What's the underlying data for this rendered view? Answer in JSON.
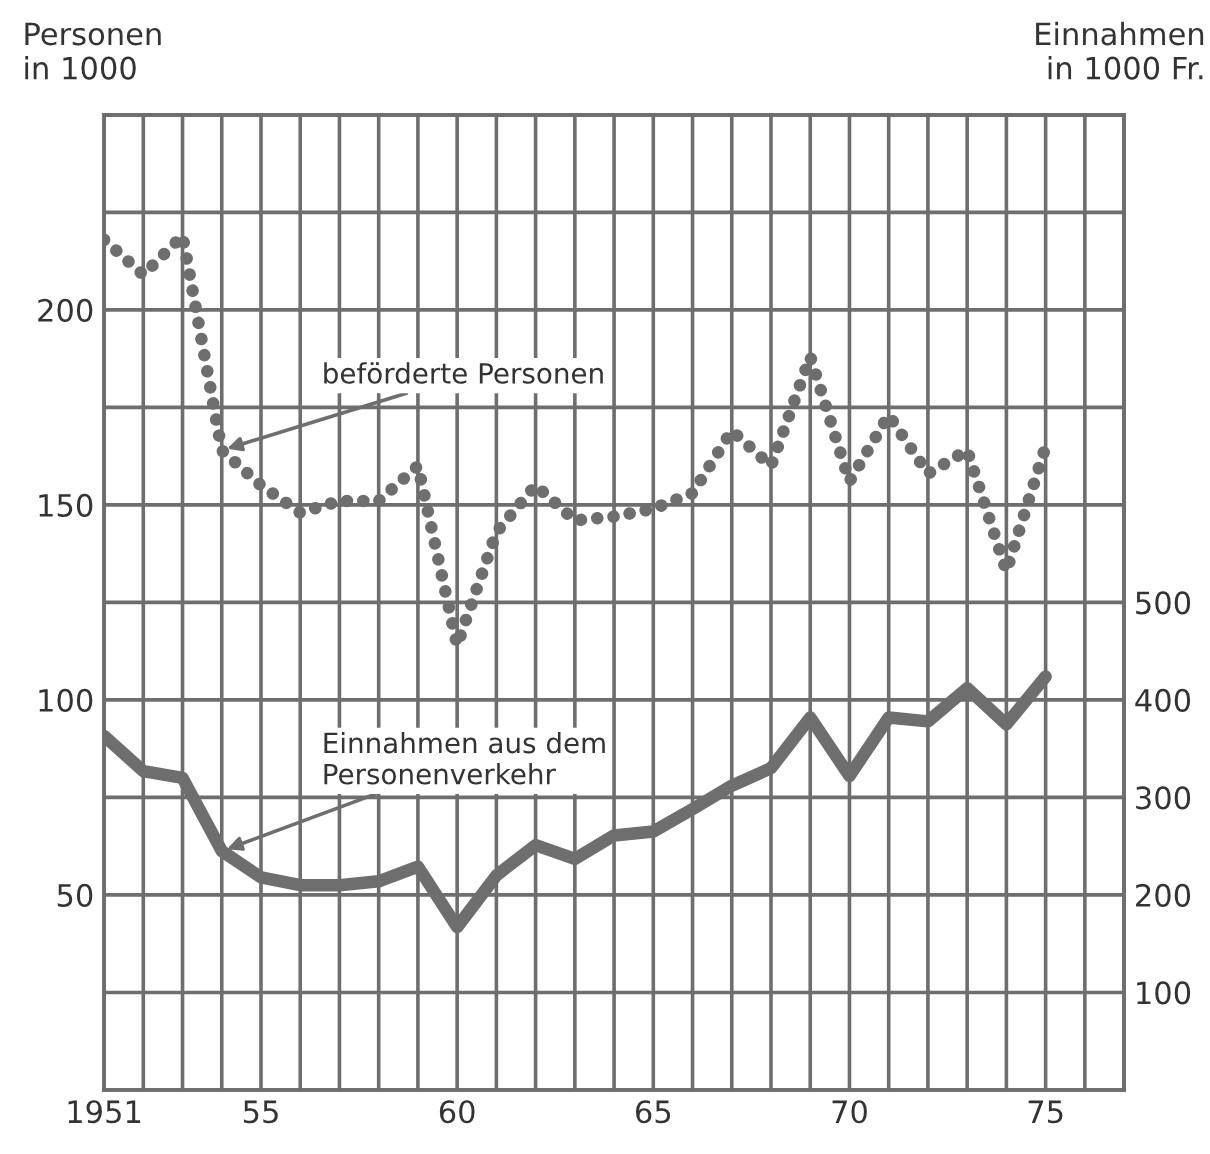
{
  "chart_data": {
    "type": "line",
    "ylabel": "Personen\nin 1000",
    "y2label": "Einnahmen\nin 1000 Fr.",
    "x": [
      1951,
      1952,
      1953,
      1954,
      1955,
      1956,
      1957,
      1958,
      1959,
      1960,
      1961,
      1962,
      1963,
      1964,
      1965,
      1966,
      1967,
      1968,
      1969,
      1970,
      1971,
      1972,
      1973,
      1974,
      1975
    ],
    "series": [
      {
        "color": "#6e6e6e",
        "line_style": "dotted",
        "values": [
          218,
          209,
          219,
          164,
          155,
          148,
          151,
          151,
          160,
          114,
          143,
          155,
          146,
          147,
          149,
          153,
          169,
          160,
          188,
          156,
          173,
          158,
          164,
          133,
          165
        ]
      },
      {
        "color": "#6e6e6e",
        "line_style": "solid",
        "axis": "y2",
        "values": [
          363,
          327,
          320,
          245,
          218,
          210,
          210,
          214,
          229,
          167,
          220,
          251,
          237,
          261,
          265,
          288,
          312,
          330,
          382,
          322,
          382,
          378,
          412,
          375,
          424
        ]
      }
    ],
    "annotations": [
      {
        "text": "beförderte Personen",
        "x": 1954,
        "y": 164
      },
      {
        "text": "Einnahmen aus dem\nPersonenverkehr",
        "x": 1954,
        "y": 61.25
      }
    ],
    "xlim": [
      1951,
      1977
    ],
    "xticks": [
      {
        "value": 1951,
        "label": "1951"
      },
      {
        "value": 1952,
        "label": null
      },
      {
        "value": 1953,
        "label": null
      },
      {
        "value": 1954,
        "label": null
      },
      {
        "value": 1955,
        "label": "55"
      },
      {
        "value": 1956,
        "label": null
      },
      {
        "value": 1957,
        "label": null
      },
      {
        "value": 1958,
        "label": null
      },
      {
        "value": 1959,
        "label": null
      },
      {
        "value": 1960,
        "label": "60"
      },
      {
        "value": 1961,
        "label": null
      },
      {
        "value": 1962,
        "label": null
      },
      {
        "value": 1963,
        "label": null
      },
      {
        "value": 1964,
        "label": null
      },
      {
        "value": 1965,
        "label": "65"
      },
      {
        "value": 1966,
        "label": null
      },
      {
        "value": 1967,
        "label": null
      },
      {
        "value": 1968,
        "label": null
      },
      {
        "value": 1969,
        "label": null
      },
      {
        "value": 1970,
        "label": "70"
      },
      {
        "value": 1971,
        "label": null
      },
      {
        "value": 1972,
        "label": null
      },
      {
        "value": 1973,
        "label": null
      },
      {
        "value": 1974,
        "label": null
      },
      {
        "value": 1975,
        "label": "75"
      },
      {
        "value": 1976,
        "label": null
      },
      {
        "value": 1977,
        "label": null
      }
    ],
    "ylim": [
      0,
      250
    ],
    "yticks": [
      {
        "value": 0,
        "label": null
      },
      {
        "value": 25,
        "label": null
      },
      50,
      {
        "value": 75,
        "label": null
      },
      100,
      {
        "value": 125,
        "label": null
      },
      150,
      {
        "value": 175,
        "label": null
      },
      200,
      {
        "value": 225,
        "label": null
      },
      {
        "value": 250,
        "label": null
      }
    ],
    "y2lim": [
      0,
      1000
    ],
    "y2ticks": [
      100,
      200,
      300,
      400,
      500
    ],
    "grid": true
  }
}
